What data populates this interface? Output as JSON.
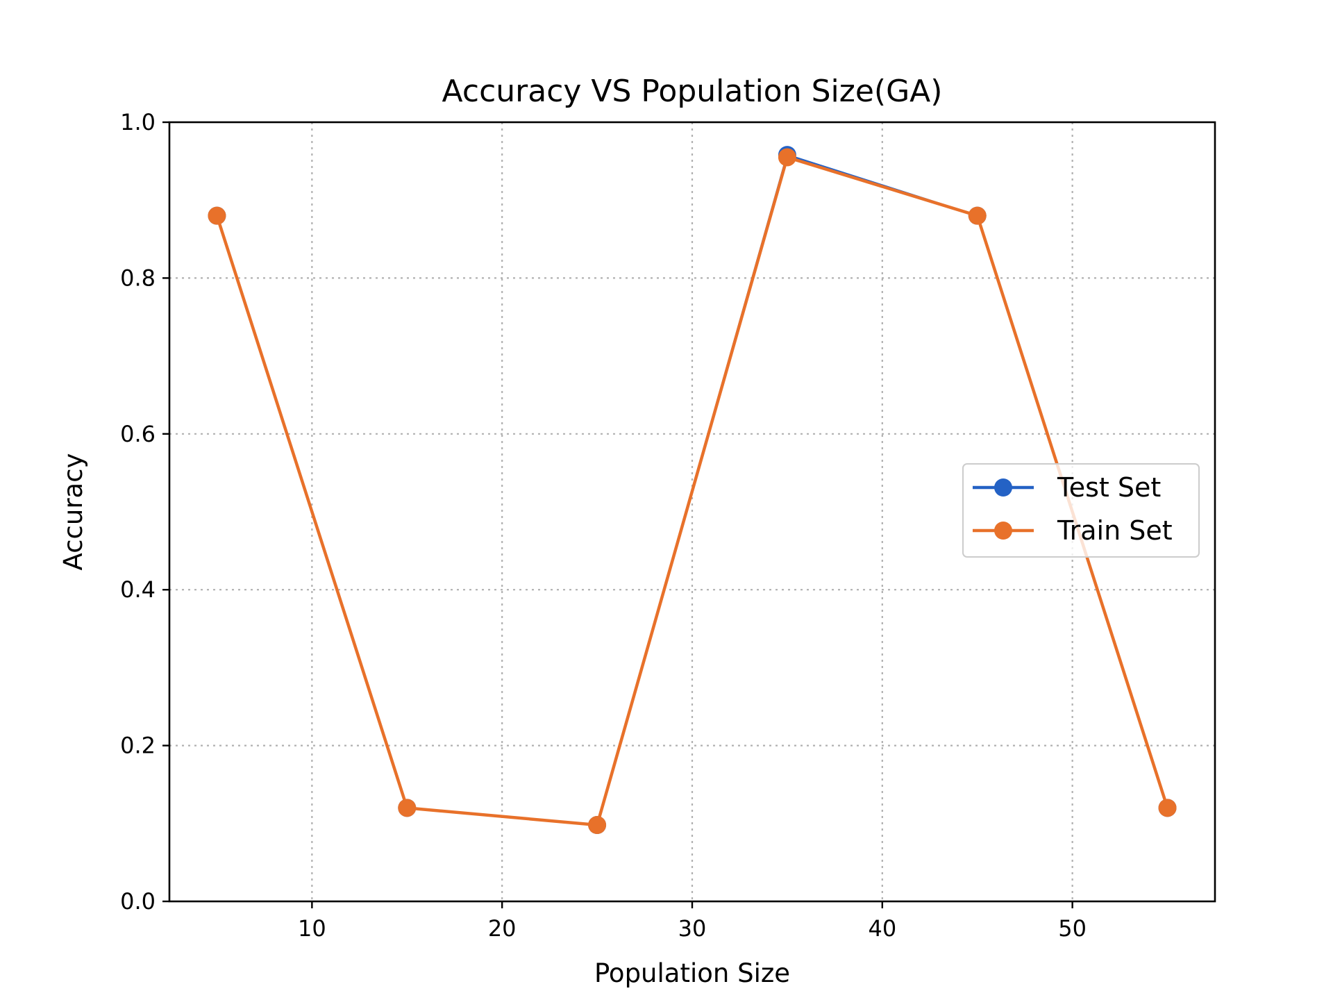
{
  "chart_data": {
    "type": "line",
    "title": "Accuracy VS Population Size(GA)",
    "xlabel": "Population Size",
    "ylabel": "Accuracy",
    "xlim": [
      2.5,
      57.5
    ],
    "ylim": [
      0.0,
      1.0
    ],
    "xticks": [
      10,
      20,
      30,
      40,
      50
    ],
    "xtick_labels": [
      "10",
      "20",
      "30",
      "40",
      "50"
    ],
    "yticks": [
      0.0,
      0.2,
      0.4,
      0.6,
      0.8,
      1.0
    ],
    "ytick_labels": [
      "0.0",
      "0.2",
      "0.4",
      "0.6",
      "0.8",
      "1.0"
    ],
    "grid": true,
    "legend_position": "center-right",
    "x": [
      5,
      15,
      25,
      35,
      45,
      55
    ],
    "series": [
      {
        "name": "Test Set",
        "color": "#2462c5",
        "values": [
          0.88,
          0.12,
          0.098,
          0.958,
          0.88,
          0.12
        ]
      },
      {
        "name": "Train Set",
        "color": "#e8712a",
        "values": [
          0.88,
          0.12,
          0.098,
          0.955,
          0.88,
          0.12
        ]
      }
    ]
  }
}
